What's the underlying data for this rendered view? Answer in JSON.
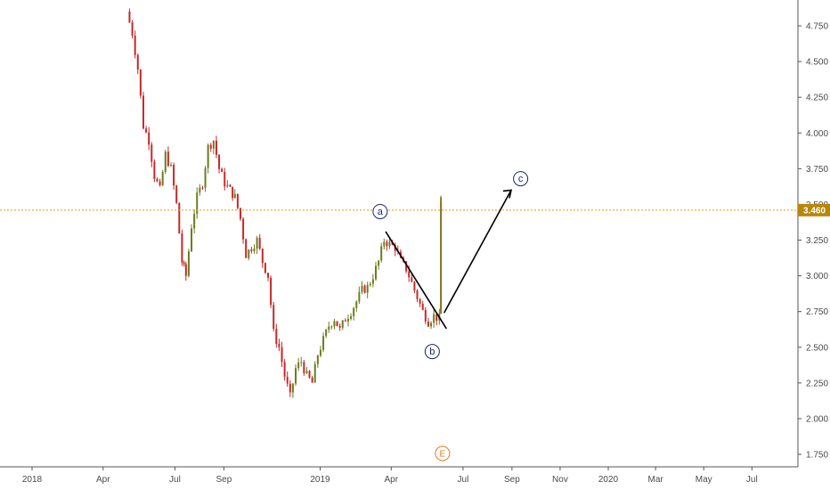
{
  "chart_data": {
    "type": "candlestick",
    "y_ticks": [
      "4.750",
      "4.500",
      "4.250",
      "4.000",
      "3.750",
      "3.500",
      "3.250",
      "3.000",
      "2.750",
      "2.500",
      "2.250",
      "2.000",
      "1.750"
    ],
    "x_ticks": [
      "2018",
      "Apr",
      "Jul",
      "Sep",
      "2019",
      "Apr",
      "Jul",
      "Sep",
      "Nov",
      "2020",
      "Mar",
      "May",
      "Jul"
    ],
    "ylim": [
      1.65,
      4.9
    ],
    "last_price": 3.46,
    "last_price_label": "3.460",
    "wave_labels": [
      "a",
      "b",
      "c"
    ],
    "earnings_marker": "E",
    "series": [
      {
        "close_points": [
          [
            "2018-05-01",
            4.85
          ],
          [
            "2018-05-08",
            4.7
          ],
          [
            "2018-05-15",
            4.45
          ],
          [
            "2018-05-22",
            4.05
          ],
          [
            "2018-05-29",
            3.95
          ],
          [
            "2018-06-05",
            3.7
          ],
          [
            "2018-06-12",
            3.6
          ],
          [
            "2018-06-19",
            3.85
          ],
          [
            "2018-06-26",
            3.75
          ],
          [
            "2018-07-03",
            3.5
          ],
          [
            "2018-07-10",
            3.1
          ],
          [
            "2018-07-15",
            3.0
          ],
          [
            "2018-07-22",
            3.35
          ],
          [
            "2018-07-29",
            3.55
          ],
          [
            "2018-08-05",
            3.65
          ],
          [
            "2018-08-12",
            3.9
          ],
          [
            "2018-08-19",
            3.95
          ],
          [
            "2018-08-26",
            3.75
          ],
          [
            "2018-09-02",
            3.65
          ],
          [
            "2018-09-09",
            3.6
          ],
          [
            "2018-09-15",
            3.55
          ],
          [
            "2018-09-22",
            3.4
          ],
          [
            "2018-09-29",
            3.15
          ],
          [
            "2018-10-06",
            3.2
          ],
          [
            "2018-10-13",
            3.25
          ],
          [
            "2018-10-20",
            3.1
          ],
          [
            "2018-10-27",
            3.0
          ],
          [
            "2018-11-03",
            2.6
          ],
          [
            "2018-11-10",
            2.5
          ],
          [
            "2018-11-17",
            2.3
          ],
          [
            "2018-11-24",
            2.15
          ],
          [
            "2018-12-01",
            2.35
          ],
          [
            "2018-12-08",
            2.4
          ],
          [
            "2018-12-15",
            2.3
          ],
          [
            "2018-12-22",
            2.25
          ],
          [
            "2018-12-29",
            2.45
          ],
          [
            "2019-01-05",
            2.55
          ],
          [
            "2019-01-12",
            2.65
          ],
          [
            "2019-01-19",
            2.7
          ],
          [
            "2019-01-26",
            2.62
          ],
          [
            "2019-02-02",
            2.7
          ],
          [
            "2019-02-09",
            2.75
          ],
          [
            "2019-02-16",
            2.82
          ],
          [
            "2019-02-23",
            2.9
          ],
          [
            "2019-03-02",
            2.92
          ],
          [
            "2019-03-09",
            3.0
          ],
          [
            "2019-03-16",
            3.1
          ],
          [
            "2019-03-23",
            3.25
          ],
          [
            "2019-03-30",
            3.22
          ],
          [
            "2019-04-06",
            3.2
          ],
          [
            "2019-04-13",
            3.1
          ],
          [
            "2019-04-20",
            3.05
          ],
          [
            "2019-04-27",
            2.95
          ],
          [
            "2019-05-04",
            2.85
          ],
          [
            "2019-05-11",
            2.75
          ],
          [
            "2019-05-18",
            2.68
          ],
          [
            "2019-05-25",
            2.72
          ],
          [
            "2019-06-01",
            2.7
          ],
          [
            "2019-06-03",
            3.52
          ]
        ]
      }
    ]
  }
}
